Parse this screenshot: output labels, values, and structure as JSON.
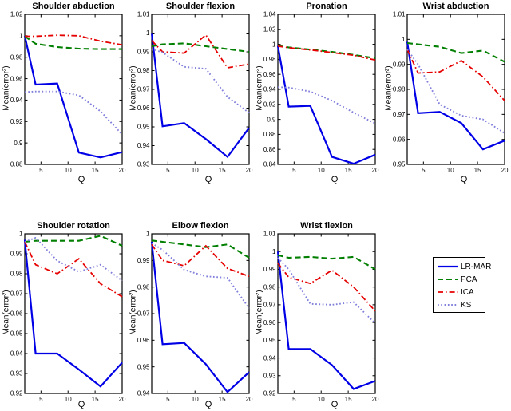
{
  "figure": {
    "background": "#ffffff",
    "axis_color": "#000000"
  },
  "legend": {
    "items": [
      {
        "name": "LR-MAR",
        "style": "solid",
        "color": "#0000e6"
      },
      {
        "name": "PCA",
        "style": "dashed",
        "color": "#007f00"
      },
      {
        "name": "ICA",
        "style": "dashdot",
        "color": "#e60000"
      },
      {
        "name": "KS",
        "style": "dotted",
        "color": "#8080dc"
      }
    ]
  },
  "chart_data": [
    {
      "type": "line",
      "title": "Shoulder abduction",
      "xlabel": "Q",
      "ylabel": "Mean(error²)",
      "xlim": [
        2,
        20
      ],
      "ylim": [
        0.88,
        1.02
      ],
      "xticks": [
        5,
        10,
        15,
        20
      ],
      "yticks": [
        "0.88",
        "0.9",
        "0.92",
        "0.94",
        "0.96",
        "0.98",
        "1",
        "1.02"
      ],
      "x": [
        2,
        4,
        8,
        12,
        16,
        20
      ],
      "series": [
        {
          "name": "LR-MAR",
          "values": [
            1.0,
            0.9545,
            0.9555,
            0.891,
            0.8865,
            0.8915
          ]
        },
        {
          "name": "PCA",
          "values": [
            0.9995,
            0.9925,
            0.9895,
            0.988,
            0.9875,
            0.9875
          ]
        },
        {
          "name": "ICA",
          "values": [
            0.9995,
            0.9995,
            1.0005,
            1.0,
            0.995,
            0.9915
          ]
        },
        {
          "name": "KS",
          "values": [
            0.9475,
            0.948,
            0.948,
            0.9445,
            0.9295,
            0.908
          ]
        }
      ],
      "legend_position": "none",
      "grid": false
    },
    {
      "type": "line",
      "title": "Shoulder flexion",
      "xlabel": "Q",
      "ylabel": "Mean(error²)",
      "xlim": [
        2,
        20
      ],
      "ylim": [
        0.93,
        1.01
      ],
      "xticks": [
        5,
        10,
        15,
        20
      ],
      "yticks": [
        "0.93",
        "0.94",
        "0.95",
        "0.96",
        "0.97",
        "0.98",
        "0.99",
        "1",
        "1.01"
      ],
      "x": [
        2,
        4,
        8,
        12,
        16,
        20
      ],
      "series": [
        {
          "name": "LR-MAR",
          "values": [
            1.0,
            0.9503,
            0.952,
            0.9435,
            0.934,
            0.9495
          ]
        },
        {
          "name": "PCA",
          "values": [
            0.993,
            0.994,
            0.9945,
            0.993,
            0.9915,
            0.99
          ]
        },
        {
          "name": "ICA",
          "values": [
            0.996,
            0.99,
            0.9893,
            0.999,
            0.9815,
            0.9835
          ]
        },
        {
          "name": "KS",
          "values": [
            0.9915,
            0.9897,
            0.982,
            0.981,
            0.966,
            0.9575
          ]
        }
      ],
      "legend_position": "none",
      "grid": false
    },
    {
      "type": "line",
      "title": "Pronation",
      "xlabel": "Q",
      "ylabel": "Mean(error²)",
      "xlim": [
        2,
        20
      ],
      "ylim": [
        0.84,
        1.04
      ],
      "xticks": [
        5,
        10,
        15,
        20
      ],
      "yticks": [
        "0.84",
        "0.86",
        "0.88",
        "0.9",
        "0.92",
        "0.94",
        "0.96",
        "0.98",
        "1",
        "1.02",
        "1.04"
      ],
      "x": [
        2,
        4,
        8,
        12,
        16,
        20
      ],
      "series": [
        {
          "name": "LR-MAR",
          "values": [
            0.998,
            0.917,
            0.918,
            0.85,
            0.841,
            0.853
          ]
        },
        {
          "name": "PCA",
          "values": [
            0.998,
            0.996,
            0.993,
            0.99,
            0.986,
            0.9815
          ]
        },
        {
          "name": "ICA",
          "values": [
            0.9975,
            0.9955,
            0.9925,
            0.989,
            0.9855,
            0.979
          ]
        },
        {
          "name": "KS",
          "values": [
            0.943,
            0.9425,
            0.937,
            0.925,
            0.909,
            0.8945
          ]
        }
      ],
      "legend_position": "none",
      "grid": false
    },
    {
      "type": "line",
      "title": "Wrist abduction",
      "xlabel": "Q",
      "ylabel": "Mean(error²)",
      "xlim": [
        2,
        20
      ],
      "ylim": [
        0.95,
        1.01
      ],
      "xticks": [
        5,
        10,
        15,
        20
      ],
      "yticks": [
        "0.95",
        "0.96",
        "0.97",
        "0.98",
        "0.99",
        "1",
        "1.01"
      ],
      "x": [
        2,
        4,
        8,
        12,
        16,
        20
      ],
      "series": [
        {
          "name": "LR-MAR",
          "values": [
            0.999,
            0.9705,
            0.971,
            0.9665,
            0.956,
            0.9595
          ]
        },
        {
          "name": "PCA",
          "values": [
            0.9985,
            0.998,
            0.997,
            0.9945,
            0.9955,
            0.991
          ]
        },
        {
          "name": "ICA",
          "values": [
            0.996,
            0.9865,
            0.987,
            0.9915,
            0.985,
            0.9755
          ]
        },
        {
          "name": "KS",
          "values": [
            0.996,
            0.99,
            0.974,
            0.9695,
            0.968,
            0.9625
          ]
        }
      ],
      "legend_position": "none",
      "grid": false
    },
    {
      "type": "line",
      "title": "Shoulder rotation",
      "xlabel": "Q",
      "ylabel": "Mean(error²)",
      "xlim": [
        2,
        20
      ],
      "ylim": [
        0.92,
        1.0
      ],
      "xticks": [
        5,
        10,
        15,
        20
      ],
      "yticks": [
        "0.92",
        "0.93",
        "0.94",
        "0.95",
        "0.96",
        "0.97",
        "0.98",
        "0.99",
        "1"
      ],
      "x": [
        2,
        4,
        8,
        12,
        16,
        20
      ],
      "series": [
        {
          "name": "LR-MAR",
          "values": [
            0.997,
            0.94,
            0.94,
            0.932,
            0.9235,
            0.9355
          ]
        },
        {
          "name": "PCA",
          "values": [
            0.996,
            0.9965,
            0.9965,
            0.9965,
            0.999,
            0.994
          ]
        },
        {
          "name": "ICA",
          "values": [
            0.996,
            0.9845,
            0.98,
            0.9875,
            0.975,
            0.9685
          ]
        },
        {
          "name": "KS",
          "values": [
            0.996,
            0.998,
            0.9865,
            0.981,
            0.9845,
            0.9765
          ]
        }
      ],
      "legend_position": "none",
      "grid": false
    },
    {
      "type": "line",
      "title": "Elbow flexion",
      "xlabel": "Q",
      "ylabel": "Mean(error²)",
      "xlim": [
        2,
        20
      ],
      "ylim": [
        0.94,
        1.0
      ],
      "xticks": [
        5,
        10,
        15,
        20
      ],
      "yticks": [
        "0.94",
        "0.95",
        "0.96",
        "0.97",
        "0.98",
        "0.99",
        "1"
      ],
      "x": [
        2,
        4,
        8,
        12,
        16,
        20
      ],
      "series": [
        {
          "name": "LR-MAR",
          "values": [
            0.997,
            0.9585,
            0.959,
            0.951,
            0.9405,
            0.948
          ]
        },
        {
          "name": "PCA",
          "values": [
            0.9975,
            0.997,
            0.996,
            0.995,
            0.996,
            0.991
          ]
        },
        {
          "name": "ICA",
          "values": [
            0.996,
            0.99,
            0.988,
            0.9955,
            0.987,
            0.984
          ]
        },
        {
          "name": "KS",
          "values": [
            0.9965,
            0.994,
            0.9865,
            0.984,
            0.9835,
            0.972
          ]
        }
      ],
      "legend_position": "none",
      "grid": false
    },
    {
      "type": "line",
      "title": "Wrist flexion",
      "xlabel": "Q",
      "ylabel": "Mean(error²)",
      "xlim": [
        2,
        20
      ],
      "ylim": [
        0.92,
        1.01
      ],
      "xticks": [
        5,
        10,
        15,
        20
      ],
      "yticks": [
        "0.92",
        "0.93",
        "0.94",
        "0.95",
        "0.96",
        "0.97",
        "0.98",
        "0.99",
        "1",
        "1.01"
      ],
      "x": [
        2,
        4,
        8,
        12,
        16,
        20
      ],
      "series": [
        {
          "name": "LR-MAR",
          "values": [
            1.0,
            0.945,
            0.945,
            0.936,
            0.9225,
            0.927
          ]
        },
        {
          "name": "PCA",
          "values": [
            0.998,
            0.9965,
            0.997,
            0.996,
            0.997,
            0.99
          ]
        },
        {
          "name": "ICA",
          "values": [
            0.9935,
            0.9855,
            0.982,
            0.9895,
            0.98,
            0.9665
          ]
        },
        {
          "name": "KS",
          "values": [
            0.9965,
            0.99,
            0.9705,
            0.97,
            0.9715,
            0.9595
          ]
        }
      ],
      "legend_position": "right-outside",
      "grid": false
    }
  ]
}
